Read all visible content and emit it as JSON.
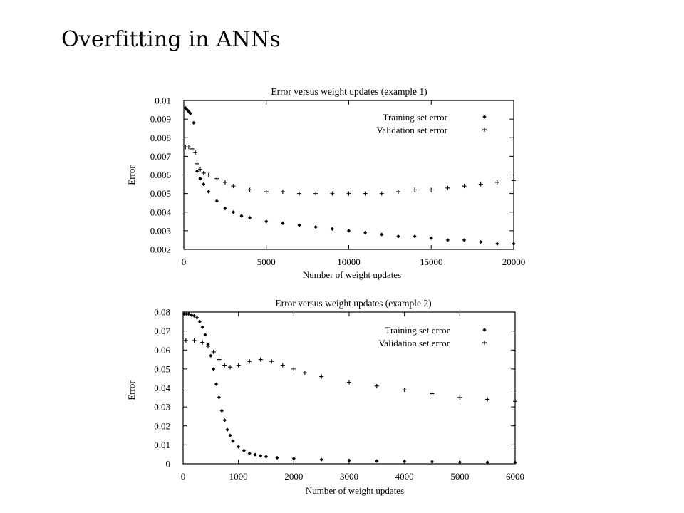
{
  "slide": {
    "title": "Overfitting in ANNs"
  },
  "chart_data": [
    {
      "type": "scatter",
      "title": "Error versus weight updates (example 1)",
      "xlabel": "Number of weight updates",
      "ylabel": "Error",
      "xlim": [
        0,
        20000
      ],
      "ylim": [
        0.002,
        0.01
      ],
      "xticks": [
        0,
        5000,
        10000,
        15000,
        20000
      ],
      "xtick_labels": [
        "0",
        "5000",
        "10000",
        "15000",
        "20000"
      ],
      "yticks": [
        0.002,
        0.003,
        0.004,
        0.005,
        0.006,
        0.007,
        0.008,
        0.009,
        0.01
      ],
      "ytick_labels": [
        "0.002",
        "0.003",
        "0.004",
        "0.005",
        "0.006",
        "0.007",
        "0.008",
        "0.009",
        "0.01"
      ],
      "legend_position": "top-right",
      "grid": false,
      "series": [
        {
          "name": "Training set error",
          "marker": "diamond",
          "x": [
            100,
            200,
            300,
            400,
            600,
            800,
            1000,
            1200,
            1500,
            2000,
            2500,
            3000,
            3500,
            4000,
            5000,
            6000,
            7000,
            8000,
            9000,
            10000,
            11000,
            12000,
            13000,
            14000,
            15000,
            16000,
            17000,
            18000,
            19000,
            20000
          ],
          "y": [
            0.0096,
            0.0095,
            0.0094,
            0.0093,
            0.0088,
            0.0062,
            0.0058,
            0.0055,
            0.0051,
            0.0046,
            0.0042,
            0.004,
            0.0038,
            0.0037,
            0.0035,
            0.0034,
            0.0033,
            0.0032,
            0.0031,
            0.003,
            0.0029,
            0.0028,
            0.0027,
            0.0027,
            0.0026,
            0.0025,
            0.0025,
            0.0024,
            0.0023,
            0.0023
          ]
        },
        {
          "name": "Validation set error",
          "marker": "plus",
          "x": [
            100,
            300,
            500,
            700,
            800,
            1000,
            1200,
            1500,
            2000,
            2500,
            3000,
            4000,
            5000,
            6000,
            7000,
            8000,
            9000,
            10000,
            11000,
            12000,
            13000,
            14000,
            15000,
            16000,
            17000,
            18000,
            19000,
            20000
          ],
          "y": [
            0.0075,
            0.0075,
            0.0074,
            0.0072,
            0.0066,
            0.0063,
            0.0061,
            0.006,
            0.0058,
            0.0056,
            0.0054,
            0.0052,
            0.0051,
            0.0051,
            0.005,
            0.005,
            0.005,
            0.005,
            0.005,
            0.005,
            0.0051,
            0.0052,
            0.0052,
            0.0053,
            0.0054,
            0.0055,
            0.0056,
            0.0057
          ]
        }
      ]
    },
    {
      "type": "scatter",
      "title": "Error versus weight updates (example 2)",
      "xlabel": "Number of weight updates",
      "ylabel": "Error",
      "xlim": [
        0,
        6000
      ],
      "ylim": [
        0,
        0.08
      ],
      "xticks": [
        0,
        1000,
        2000,
        3000,
        4000,
        5000,
        6000
      ],
      "xtick_labels": [
        "0",
        "1000",
        "2000",
        "3000",
        "4000",
        "5000",
        "6000"
      ],
      "yticks": [
        0,
        0.01,
        0.02,
        0.03,
        0.04,
        0.05,
        0.06,
        0.07,
        0.08
      ],
      "ytick_labels": [
        "0",
        "0.01",
        "0.02",
        "0.03",
        "0.04",
        "0.05",
        "0.06",
        "0.07",
        "0.08"
      ],
      "legend_position": "top-right",
      "grid": false,
      "series": [
        {
          "name": "Training set error",
          "marker": "diamond",
          "x": [
            20,
            60,
            100,
            150,
            200,
            250,
            300,
            350,
            400,
            450,
            500,
            550,
            600,
            650,
            700,
            750,
            800,
            850,
            900,
            1000,
            1100,
            1200,
            1300,
            1400,
            1500,
            1700,
            2000,
            2500,
            3000,
            3500,
            4000,
            4500,
            5000,
            5500,
            6000
          ],
          "y": [
            0.079,
            0.079,
            0.079,
            0.0785,
            0.078,
            0.077,
            0.075,
            0.072,
            0.068,
            0.063,
            0.057,
            0.05,
            0.042,
            0.035,
            0.028,
            0.023,
            0.018,
            0.015,
            0.012,
            0.009,
            0.007,
            0.0055,
            0.0048,
            0.0042,
            0.0038,
            0.0032,
            0.0028,
            0.0022,
            0.0018,
            0.0015,
            0.0013,
            0.0011,
            0.0009,
            0.0008,
            0.0007
          ]
        },
        {
          "name": "Validation set error",
          "marker": "plus",
          "x": [
            50,
            200,
            350,
            450,
            550,
            650,
            750,
            850,
            1000,
            1200,
            1400,
            1600,
            1800,
            2000,
            2200,
            2500,
            3000,
            3500,
            4000,
            4500,
            5000,
            5500,
            6000
          ],
          "y": [
            0.065,
            0.065,
            0.064,
            0.062,
            0.059,
            0.055,
            0.052,
            0.051,
            0.052,
            0.054,
            0.055,
            0.054,
            0.052,
            0.05,
            0.048,
            0.046,
            0.043,
            0.041,
            0.039,
            0.037,
            0.035,
            0.034,
            0.033
          ]
        }
      ]
    }
  ]
}
